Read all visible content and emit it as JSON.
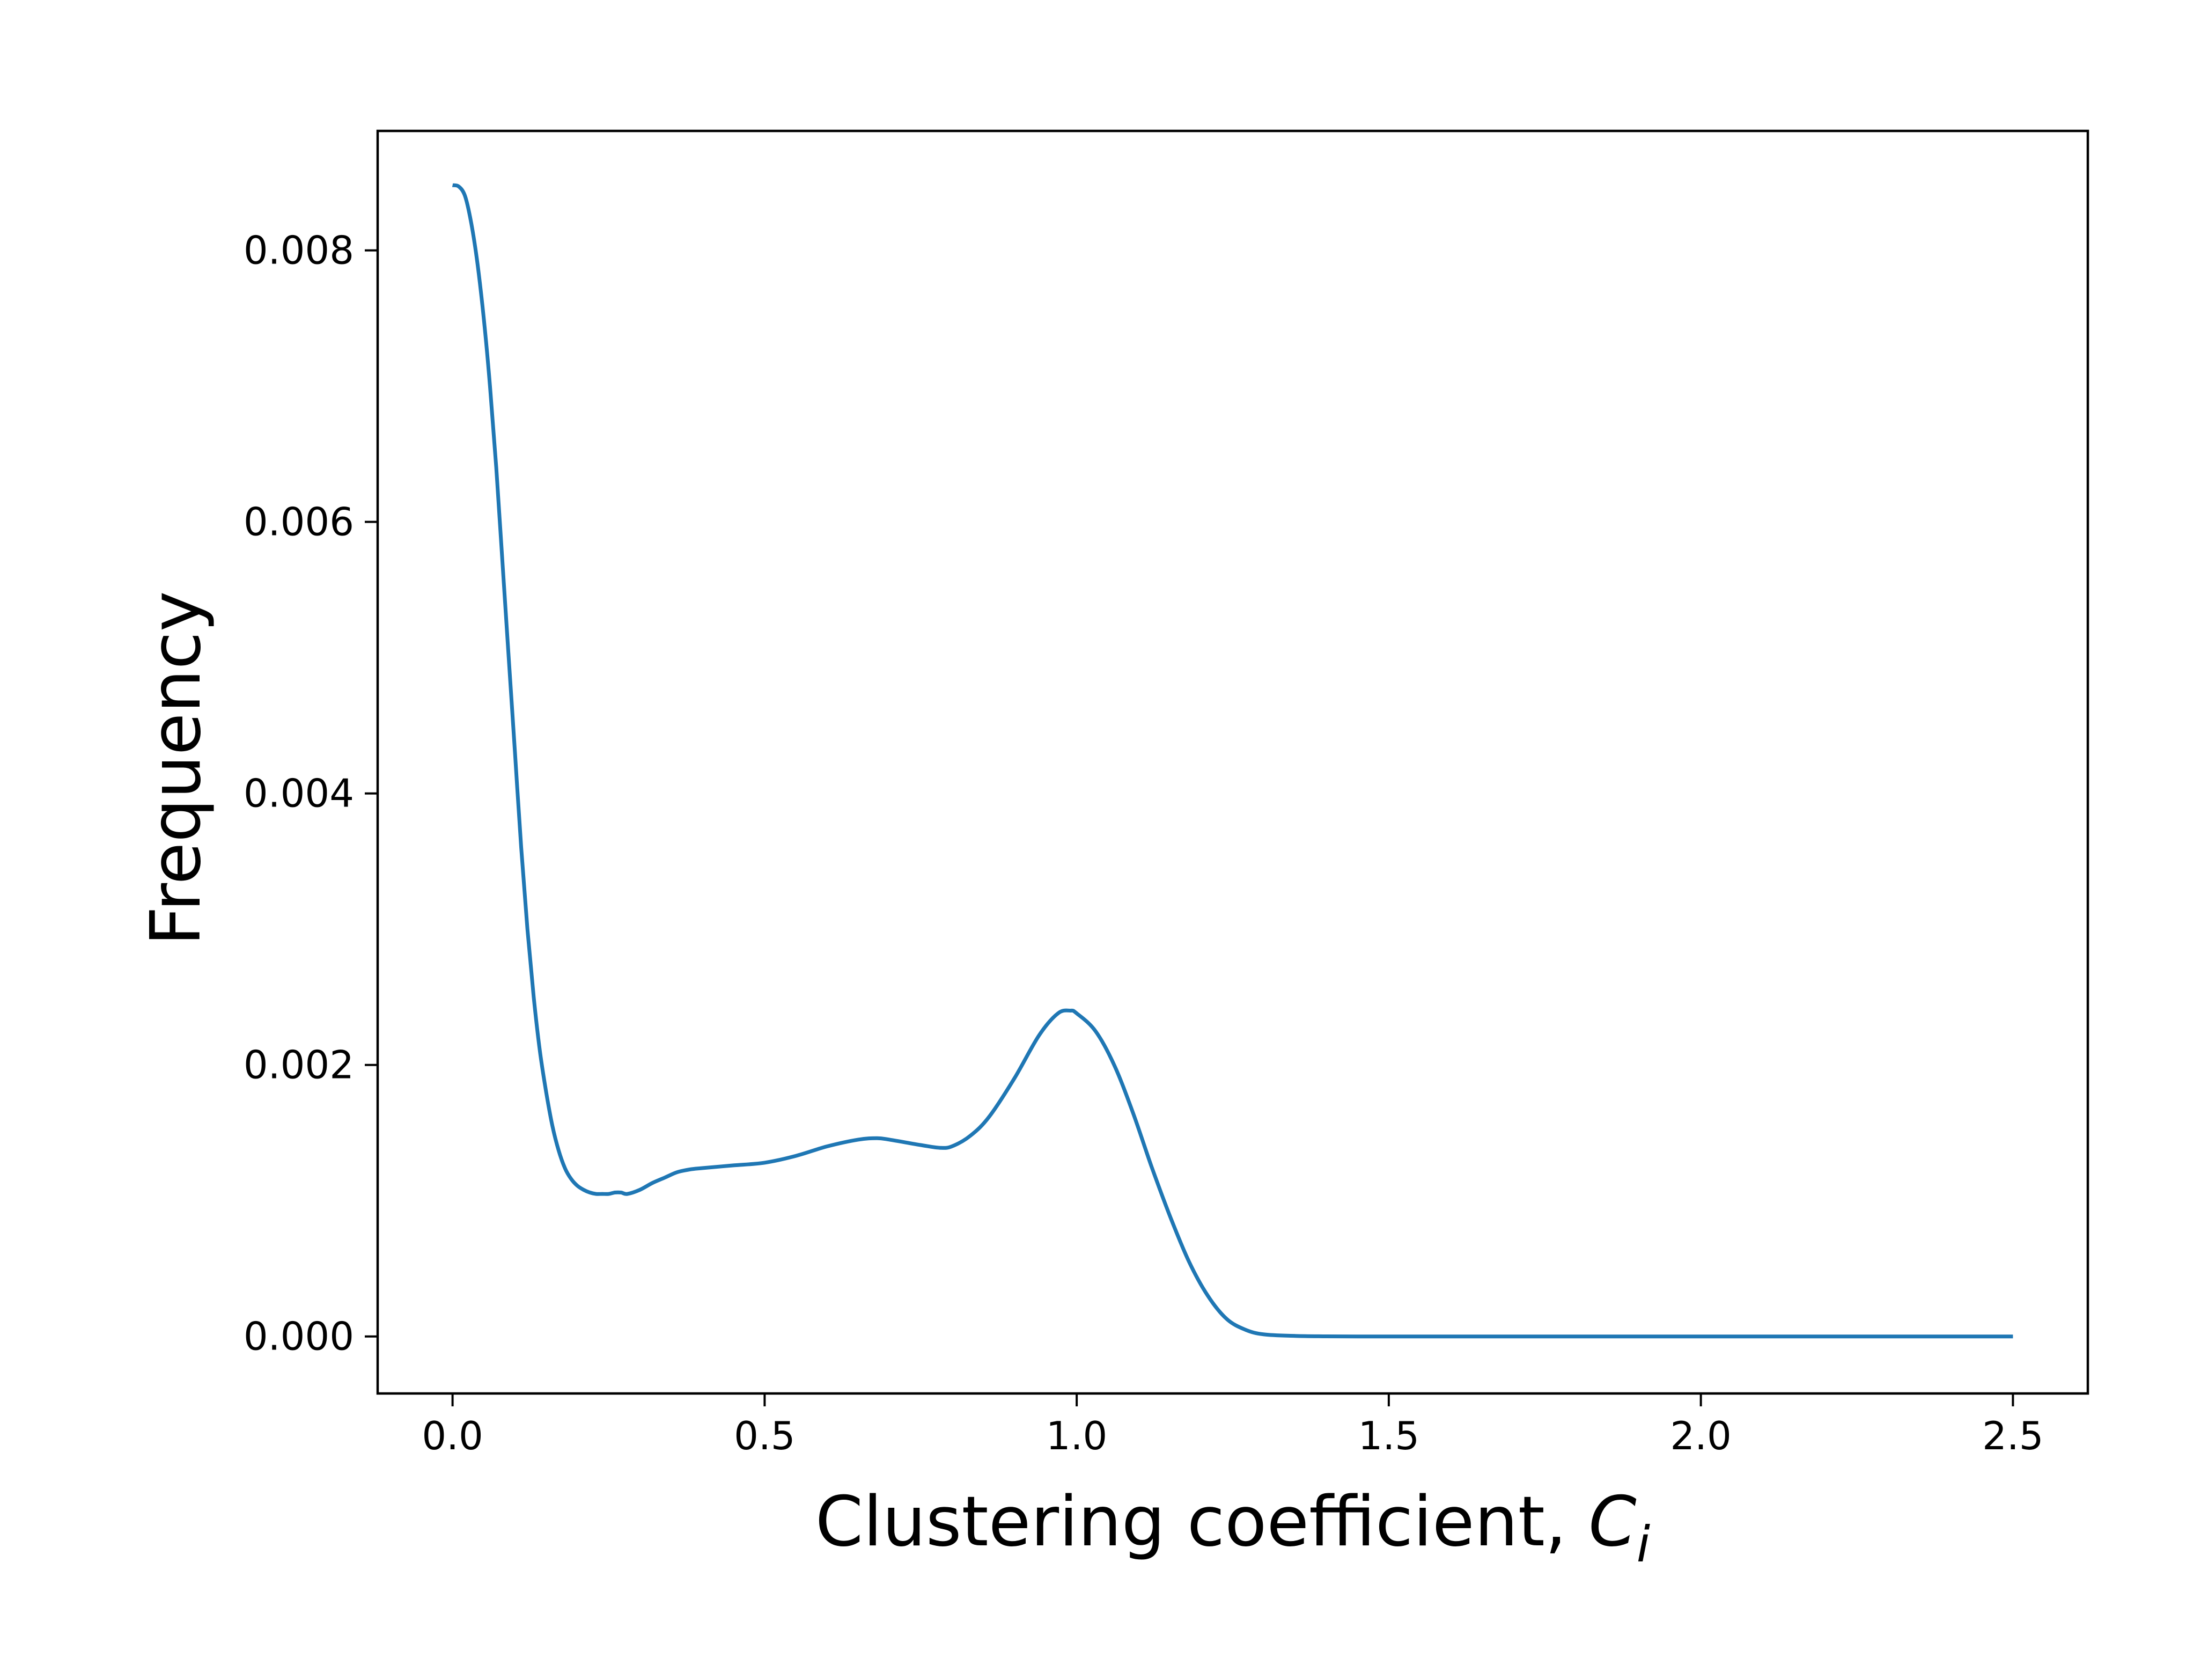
{
  "chart_data": {
    "type": "line",
    "title": "",
    "xlabel_text": "Clustering coefficient, ",
    "xlabel_symbol": "C",
    "xlabel_subscript": "i",
    "ylabel": "Frequency",
    "xlim": [
      -0.12,
      2.62
    ],
    "ylim": [
      -0.00042,
      0.00888
    ],
    "x_ticks": [
      0.0,
      0.5,
      1.0,
      1.5,
      2.0,
      2.5
    ],
    "x_tick_labels": [
      "0.0",
      "0.5",
      "1.0",
      "1.5",
      "2.0",
      "2.5"
    ],
    "y_ticks": [
      0.0,
      0.002,
      0.004,
      0.006,
      0.008
    ],
    "y_tick_labels": [
      "0.000",
      "0.002",
      "0.004",
      "0.006",
      "0.008"
    ],
    "grid": false,
    "series": [
      {
        "color": "#1f77b4",
        "x": [
          0.0,
          0.01,
          0.02,
          0.03,
          0.04,
          0.05,
          0.06,
          0.07,
          0.08,
          0.09,
          0.1,
          0.11,
          0.12,
          0.13,
          0.14,
          0.15,
          0.16,
          0.17,
          0.18,
          0.19,
          0.2,
          0.21,
          0.22,
          0.23,
          0.24,
          0.25,
          0.26,
          0.27,
          0.28,
          0.3,
          0.32,
          0.34,
          0.36,
          0.38,
          0.4,
          0.45,
          0.5,
          0.55,
          0.6,
          0.65,
          0.68,
          0.7,
          0.75,
          0.78,
          0.8,
          0.83,
          0.86,
          0.9,
          0.94,
          0.97,
          0.99,
          1.0,
          1.03,
          1.06,
          1.09,
          1.12,
          1.15,
          1.18,
          1.21,
          1.24,
          1.27,
          1.3,
          1.35,
          1.4,
          1.45,
          1.5,
          1.6,
          1.8,
          2.0,
          2.2,
          2.5
        ],
        "y": [
          0.00848,
          0.00847,
          0.0084,
          0.0082,
          0.0079,
          0.0075,
          0.007,
          0.0064,
          0.0057,
          0.005,
          0.0043,
          0.0036,
          0.003,
          0.0025,
          0.0021,
          0.0018,
          0.00155,
          0.00137,
          0.00124,
          0.00116,
          0.00111,
          0.00108,
          0.00106,
          0.00105,
          0.00105,
          0.00105,
          0.00106,
          0.00106,
          0.00105,
          0.00108,
          0.00113,
          0.00117,
          0.00121,
          0.00123,
          0.00124,
          0.00126,
          0.00128,
          0.00133,
          0.0014,
          0.00145,
          0.00146,
          0.00145,
          0.00141,
          0.00139,
          0.0014,
          0.00148,
          0.00162,
          0.0019,
          0.00222,
          0.00238,
          0.0024,
          0.00238,
          0.00225,
          0.002,
          0.00165,
          0.00125,
          0.00088,
          0.00055,
          0.0003,
          0.00013,
          5e-05,
          1.5e-05,
          4e-06,
          1e-06,
          0.0,
          0.0,
          0.0,
          0.0,
          0.0,
          0.0,
          0.0
        ]
      }
    ]
  }
}
